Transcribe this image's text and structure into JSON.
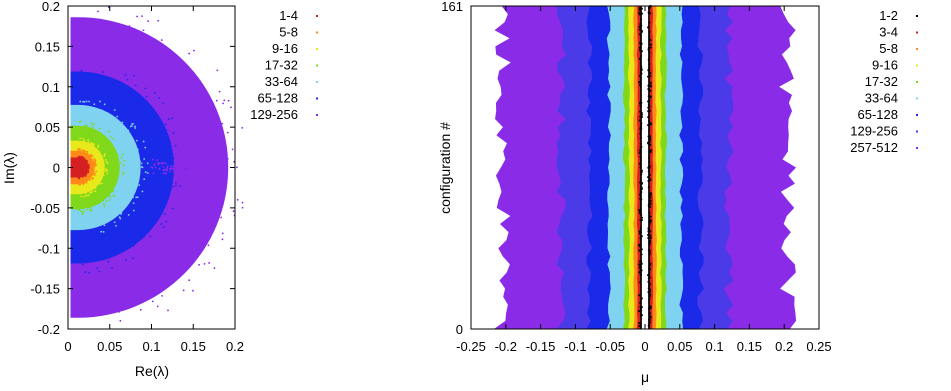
{
  "chart_data": [
    {
      "type": "scatter",
      "title": "",
      "xlabel": "Re(λ)",
      "ylabel": "Im(λ)",
      "xlim": [
        0,
        0.2
      ],
      "ylim": [
        -0.2,
        0.2
      ],
      "xticks": [
        "0",
        "0.05",
        "0.1",
        "0.15",
        "0.2"
      ],
      "yticks": [
        "0.2",
        "0.15",
        "0.1",
        "0.05",
        "0",
        "-0.05",
        "-0.1",
        "-0.15",
        "-0.2"
      ],
      "grid": false,
      "legend_placement": "outside-right",
      "series": [
        {
          "name": "1-4",
          "color": "#d42020",
          "radius": 0.012
        },
        {
          "name": "5-8",
          "color": "#ff8a1a",
          "radius": 0.02
        },
        {
          "name": "9-16",
          "color": "#e8e81a",
          "radius": 0.032
        },
        {
          "name": "17-32",
          "color": "#7fd91a",
          "radius": 0.05
        },
        {
          "name": "33-64",
          "color": "#7fd3f0",
          "radius": 0.075
        },
        {
          "name": "65-128",
          "color": "#1a2ae8",
          "radius": 0.115
        },
        {
          "name": "129-256",
          "color": "#8a2be8",
          "radius": 0.18
        }
      ]
    },
    {
      "type": "scatter",
      "title": "",
      "xlabel": "μ",
      "ylabel": "configuration #",
      "xlim": [
        -0.25,
        0.25
      ],
      "ylim": [
        0,
        161
      ],
      "xticks": [
        "-0.25",
        "-0.2",
        "-0.15",
        "-0.1",
        "-0.05",
        "0",
        "0.05",
        "0.1",
        "0.15",
        "0.2",
        "0.25"
      ],
      "yticks": [
        "161",
        "0"
      ],
      "grid": false,
      "legend_placement": "outside-right",
      "series": [
        {
          "name": "1-2",
          "color": "#000000",
          "halfwidth": 0.007
        },
        {
          "name": "3-4",
          "color": "#d42020",
          "halfwidth": 0.011
        },
        {
          "name": "5-8",
          "color": "#ff8a1a",
          "halfwidth": 0.016
        },
        {
          "name": "9-16",
          "color": "#e8e81a",
          "halfwidth": 0.023
        },
        {
          "name": "17-32",
          "color": "#7fd91a",
          "halfwidth": 0.03
        },
        {
          "name": "33-64",
          "color": "#7fd3f0",
          "halfwidth": 0.052
        },
        {
          "name": "65-128",
          "color": "#1a2ae8",
          "halfwidth": 0.08
        },
        {
          "name": "129-256",
          "color": "#4a3ae8",
          "halfwidth": 0.12
        },
        {
          "name": "257-512",
          "color": "#8a2be8",
          "halfwidth": 0.205
        }
      ]
    }
  ]
}
